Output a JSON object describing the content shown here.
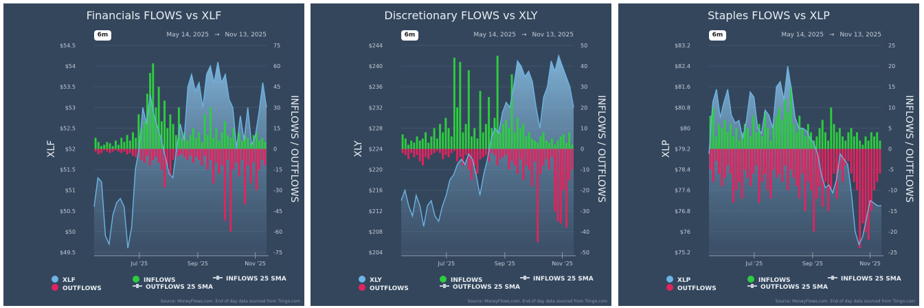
{
  "colors": {
    "background": "#34465c",
    "price": "#6cb4e4",
    "inflows": "#2ecc40",
    "outflows": "#e0245e",
    "sma": "#c8d0da"
  },
  "range_button": "6m",
  "date_from": "May 14, 2025",
  "date_to": "Nov 13, 2025",
  "date_arrow": "→",
  "source": "Source: MoneyFlows.com. End of day data sourced from Tiingo.com",
  "chart_data": [
    {
      "type": "bar+area",
      "title": "Financials FLOWS vs XLF",
      "ylabel": "XLF",
      "y2label": "INFLOWS / OUTFLOWS",
      "x_range": [
        "2025-05-14",
        "2025-11-13"
      ],
      "xticks": [
        {
          "date": "2025-07-01",
          "label": "Jul '25"
        },
        {
          "date": "2025-09-01",
          "label": "Sep '25"
        },
        {
          "date": "2025-11-01",
          "label": "Nov '25"
        }
      ],
      "ylim": [
        49.5,
        54.5
      ],
      "yticks": [
        "$54.5",
        "$54",
        "$53.5",
        "$53",
        "$52.5",
        "$52",
        "$51.5",
        "$51",
        "$50.5",
        "$50",
        "$49.5"
      ],
      "y2lim": [
        -75,
        75
      ],
      "y2ticks": [
        "75",
        "60",
        "45",
        "30",
        "15",
        "0",
        "-15",
        "-30",
        "-45",
        "-60",
        "-75"
      ],
      "legend": [
        "XLF",
        "OUTFLOWS",
        "INFLOWS",
        "OUTFLOWS 25 SMA",
        "INFLOWS 25 SMA"
      ],
      "price": [
        50.6,
        51.3,
        51.2,
        49.9,
        49.7,
        50.4,
        50.7,
        50.8,
        50.6,
        49.6,
        50.1,
        51.5,
        52.0,
        53.0,
        52.6,
        53.3,
        52.8,
        52.5,
        52.2,
        51.8,
        51.4,
        51.3,
        52.0,
        52.6,
        52.2,
        53.5,
        53.8,
        53.4,
        53.6,
        53.0,
        53.8,
        54.0,
        53.6,
        54.1,
        53.6,
        53.8,
        53.2,
        53.0,
        52.0,
        52.8,
        52.2,
        53.0,
        52.1,
        52.3,
        52.9,
        53.6,
        53.0
      ],
      "inflows": [
        8,
        5,
        2,
        3,
        5,
        4,
        2,
        6,
        3,
        8,
        5,
        10,
        6,
        12,
        8,
        25,
        15,
        20,
        40,
        55,
        62,
        30,
        45,
        20,
        35,
        15,
        25,
        18,
        10,
        30,
        8,
        12,
        6,
        10,
        15,
        8,
        12,
        5,
        25,
        10,
        30,
        8,
        15,
        6,
        12,
        20,
        10,
        8,
        15,
        5,
        12,
        6,
        10,
        8,
        4,
        10,
        12,
        6,
        8,
        5
      ],
      "outflows": [
        -2,
        -4,
        -3,
        -1,
        -2,
        -3,
        -2,
        -1,
        -2,
        -3,
        -2,
        -4,
        -3,
        -5,
        -6,
        -3,
        -8,
        -10,
        -5,
        -12,
        -8,
        -6,
        -10,
        -15,
        -28,
        -12,
        -20,
        -8,
        -6,
        -5,
        -4,
        -6,
        -8,
        -5,
        -10,
        -6,
        -8,
        -12,
        -5,
        -15,
        -8,
        -25,
        -10,
        -18,
        -12,
        -52,
        -8,
        -60,
        -15,
        -10,
        -20,
        -8,
        -40,
        -12,
        -25,
        -10,
        -30,
        -15,
        -8,
        -12
      ]
    },
    {
      "type": "bar+area",
      "title": "Discretionary FLOWS vs XLY",
      "ylabel": "XLY",
      "y2label": "INFLOWS / OUTFLOWS",
      "x_range": [
        "2025-05-14",
        "2025-11-13"
      ],
      "xticks": [
        {
          "date": "2025-07-01",
          "label": "Jul '25"
        },
        {
          "date": "2025-09-01",
          "label": "Sep '25"
        },
        {
          "date": "2025-11-01",
          "label": "Nov '25"
        }
      ],
      "ylim": [
        204,
        244
      ],
      "yticks": [
        "$244",
        "$240",
        "$236",
        "$232",
        "$228",
        "$224",
        "$220",
        "$216",
        "$212",
        "$208",
        "$204"
      ],
      "y2lim": [
        -50,
        50
      ],
      "y2ticks": [
        "50",
        "40",
        "30",
        "20",
        "10",
        "0",
        "-10",
        "-20",
        "-30",
        "-40",
        "-50"
      ],
      "legend": [
        "XLY",
        "OUTFLOWS",
        "INFLOWS",
        "OUTFLOWS 25 SMA",
        "INFLOWS 25 SMA"
      ],
      "price": [
        214,
        216,
        213,
        211,
        215,
        213,
        209,
        213,
        214,
        211,
        210,
        213,
        215,
        218,
        219,
        221,
        222,
        221,
        223,
        222,
        219,
        215,
        219,
        222,
        226,
        228,
        227,
        231,
        233,
        232,
        236,
        241,
        240,
        238,
        239,
        237,
        232,
        228,
        234,
        236,
        241,
        239,
        242,
        240,
        238,
        236,
        232
      ],
      "inflows": [
        7,
        5,
        2,
        4,
        3,
        6,
        4,
        5,
        8,
        3,
        6,
        10,
        5,
        12,
        8,
        15,
        10,
        6,
        44,
        20,
        42,
        8,
        12,
        38,
        6,
        10,
        5,
        28,
        8,
        12,
        25,
        10,
        15,
        45,
        8,
        12,
        14,
        10,
        36,
        8,
        15,
        10,
        12,
        6,
        8,
        5,
        4,
        3,
        6,
        8,
        4,
        3,
        5,
        2,
        4,
        6,
        7,
        3,
        8,
        2
      ],
      "outflows": [
        -2,
        -3,
        -5,
        -2,
        -4,
        -3,
        -6,
        -8,
        -4,
        -5,
        -3,
        -2,
        -1,
        -2,
        -5,
        -3,
        -4,
        -2,
        -1,
        -6,
        -4,
        -8,
        -3,
        -10,
        -15,
        -8,
        -12,
        -5,
        -4,
        -3,
        -6,
        -2,
        -3,
        -8,
        -5,
        -4,
        -3,
        -10,
        -6,
        -8,
        -12,
        -5,
        -15,
        -8,
        -10,
        -18,
        -6,
        -45,
        -12,
        -8,
        -5,
        -10,
        -4,
        -30,
        -35,
        -36,
        -20,
        -38,
        -15,
        -10
      ]
    },
    {
      "type": "bar+area",
      "title": "Staples FLOWS vs XLP",
      "ylabel": "XLP",
      "y2label": "INFLOWS / OUTFLOWS",
      "x_range": [
        "2025-05-14",
        "2025-11-13"
      ],
      "xticks": [
        {
          "date": "2025-07-01",
          "label": "Jul '25"
        },
        {
          "date": "2025-09-01",
          "label": "Sep '25"
        },
        {
          "date": "2025-11-01",
          "label": "Nov '25"
        }
      ],
      "ylim": [
        75.2,
        83.2
      ],
      "yticks": [
        "$83.2",
        "$82.4",
        "$81.6",
        "$80.8",
        "$80",
        "$79.2",
        "$78.4",
        "$77.6",
        "$76.8",
        "$76",
        "$75.2"
      ],
      "y2lim": [
        -25,
        25
      ],
      "y2ticks": [
        "25",
        "20",
        "15",
        "10",
        "5",
        "0",
        "-5",
        "-10",
        "-15",
        "-20",
        "-25"
      ],
      "legend": [
        "XLP",
        "OUTFLOWS",
        "INFLOWS",
        "OUTFLOWS 25 SMA",
        "INFLOWS 25 SMA"
      ],
      "price": [
        79.0,
        81.0,
        81.5,
        80.4,
        81.0,
        81.5,
        80.5,
        80.2,
        80.3,
        79.6,
        80.3,
        81.4,
        81.2,
        80.0,
        79.8,
        80.7,
        80.5,
        80.0,
        81.6,
        81.8,
        81.1,
        82.4,
        81.5,
        80.4,
        80.0,
        80.0,
        79.9,
        79.6,
        79.4,
        79.0,
        78.2,
        77.7,
        77.8,
        77.5,
        78.0,
        79.0,
        78.8,
        78.6,
        77.5,
        76.0,
        75.5,
        75.8,
        76.5,
        77.2,
        77.1,
        77.0,
        77.0
      ],
      "inflows": [
        8,
        10,
        3,
        6,
        5,
        7,
        4,
        6,
        3,
        5,
        2,
        4,
        6,
        5,
        3,
        8,
        4,
        6,
        3,
        9,
        5,
        2,
        6,
        8,
        10,
        7,
        12,
        9,
        15,
        6,
        4,
        8,
        5,
        3,
        6,
        4,
        2,
        3,
        5,
        7,
        4,
        2,
        10,
        6,
        4,
        5,
        3,
        2,
        4,
        5,
        3,
        4,
        2,
        1,
        3,
        2,
        4,
        3,
        4,
        2
      ],
      "outflows": [
        -5,
        -8,
        -3,
        -6,
        -9,
        -7,
        -4,
        -6,
        -13,
        -10,
        -8,
        -12,
        -5,
        -7,
        -9,
        -6,
        -4,
        -13,
        -8,
        -6,
        -10,
        -12,
        -5,
        -7,
        -6,
        -8,
        -4,
        -10,
        -5,
        -7,
        -9,
        -12,
        -6,
        -15,
        -8,
        -10,
        -20,
        -12,
        -9,
        -14,
        -8,
        -15,
        -10,
        -6,
        -12,
        -5,
        -8,
        -4,
        -3,
        -6,
        -8,
        -10,
        -24,
        -18,
        -20,
        -22,
        -15,
        -10,
        -8,
        -6
      ]
    }
  ]
}
